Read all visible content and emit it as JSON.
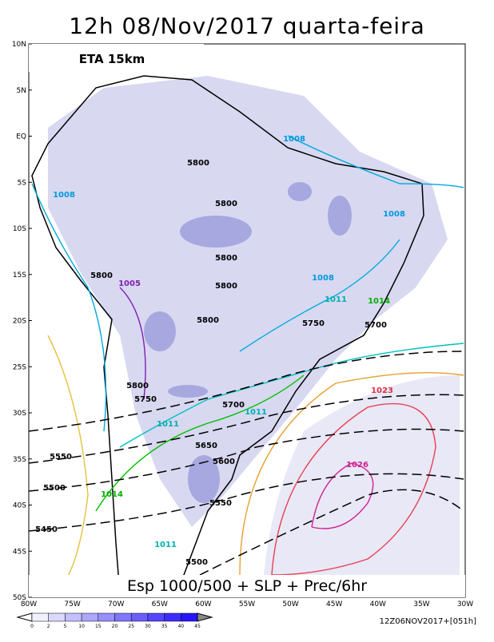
{
  "title": "12h 08/Nov/2017 quarta-feira",
  "model_label": "ETA 15km",
  "caption": "Esp 1000/500 + SLP + Prec/6hr",
  "lat_labels": [
    "10N",
    "5N",
    "EQ",
    "5S",
    "10S",
    "15S",
    "20S",
    "25S",
    "30S",
    "35S",
    "40S",
    "45S",
    "50S"
  ],
  "lon_labels": [
    "80W",
    "75W",
    "70W",
    "65W",
    "60W",
    "55W",
    "50W",
    "45W",
    "40W",
    "35W",
    "30W"
  ],
  "colorbar_labels": [
    "0",
    "2",
    "5",
    "10",
    "15",
    "20",
    "25",
    "30",
    "35",
    "40",
    "45"
  ],
  "timestamp": "12Z06NOV2017+[051h]",
  "thickness_labels": [
    "5800",
    "5800",
    "5800",
    "5800",
    "5800",
    "5800",
    "5800",
    "5750",
    "5750",
    "5700",
    "5700",
    "5650",
    "5600",
    "5550",
    "5550",
    "5500",
    "5500",
    "5450"
  ],
  "pressure_labels": [
    "1008",
    "1008",
    "1008",
    "1008",
    "1005",
    "1011",
    "1011",
    "1011",
    "1011",
    "1014",
    "1014",
    "1023",
    "1026"
  ]
}
